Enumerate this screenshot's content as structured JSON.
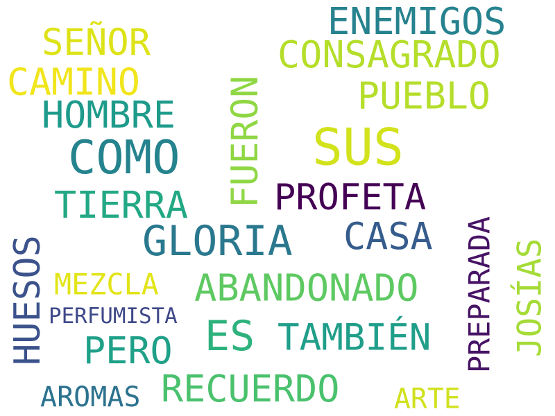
{
  "words": [
    {
      "text": "SUS",
      "color": "#d2e21b"
    },
    {
      "text": "COMO",
      "color": "#25838e"
    },
    {
      "text": "GLORIA",
      "color": "#2a788e"
    },
    {
      "text": "FUERON",
      "color": "#8fd744"
    },
    {
      "text": "PROFETA",
      "color": "#440154"
    },
    {
      "text": "CONSAGRADO",
      "color": "#b5de2b"
    },
    {
      "text": "ENEMIGOS",
      "color": "#26828e"
    },
    {
      "text": "HUESOS",
      "color": "#3b528b"
    },
    {
      "text": "ABANDONADO",
      "color": "#5ec962"
    },
    {
      "text": "JOSÍAS",
      "color": "#a5db36"
    },
    {
      "text": "TAMBIÉN",
      "color": "#1f9e89"
    },
    {
      "text": "RECUERDO",
      "color": "#4ac16d"
    },
    {
      "text": "HOMBRE",
      "color": "#1e9b8a"
    },
    {
      "text": "CASA",
      "color": "#365c8d"
    },
    {
      "text": "TIERRA",
      "color": "#22a884"
    },
    {
      "text": "PUEBLO",
      "color": "#b5de2b"
    },
    {
      "text": "SEÑOR",
      "color": "#dde318"
    },
    {
      "text": "CAMINO",
      "color": "#f1e51d"
    },
    {
      "text": "ES",
      "color": "#2db27d"
    },
    {
      "text": "PERO",
      "color": "#1fa088"
    },
    {
      "text": "PREPARADA",
      "color": "#471365"
    },
    {
      "text": "MEZCLA",
      "color": "#e2e418"
    },
    {
      "text": "AROMAS",
      "color": "#2c728e"
    },
    {
      "text": "ARTE",
      "color": "#d0e11c"
    },
    {
      "text": "PERFUMISTA",
      "color": "#3e4989"
    }
  ]
}
